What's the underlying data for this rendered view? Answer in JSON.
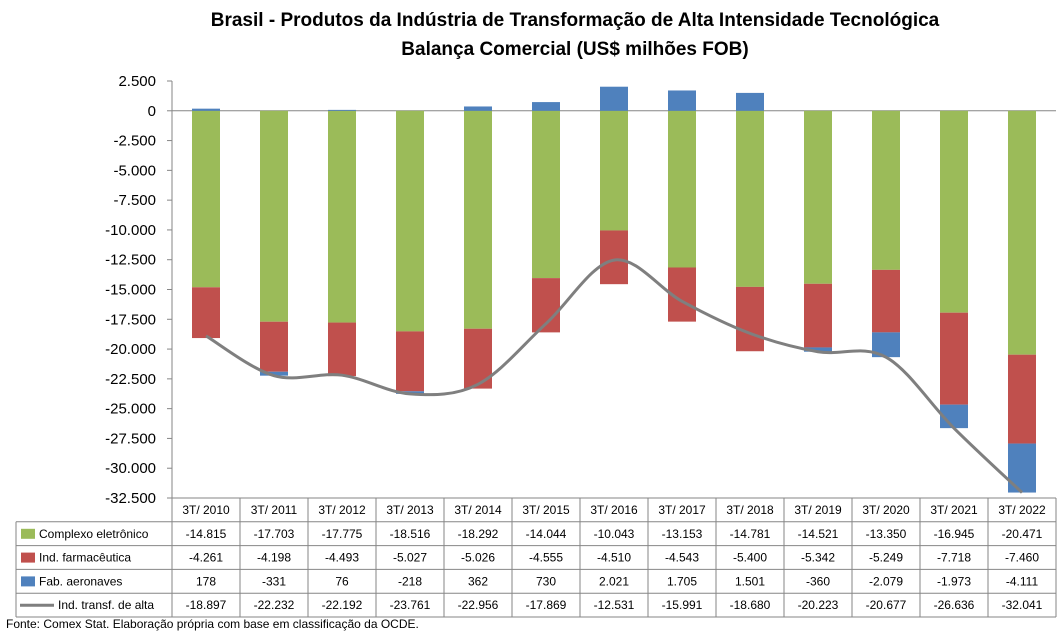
{
  "title_line1": "Brasil - Produtos da Indústria de Transformação de Alta Intensidade Tecnológica",
  "title_line2": "Balança Comercial (US$ milhões FOB)",
  "source_note": "Fonte: Comex Stat. Elaboração própria com base em classificação da OCDE.",
  "chart_data": {
    "type": "bar",
    "stacked": true,
    "categories": [
      "3T/ 2010",
      "3T/ 2011",
      "3T/ 2012",
      "3T/ 2013",
      "3T/ 2014",
      "3T/ 2015",
      "3T/ 2016",
      "3T/ 2017",
      "3T/ 2018",
      "3T/ 2019",
      "3T/ 2020",
      "3T/ 2021",
      "3T/ 2022"
    ],
    "ylim": [
      -32500,
      2500
    ],
    "yticks": [
      2500,
      0,
      -2500,
      -5000,
      -7500,
      -10000,
      -12500,
      -15000,
      -17500,
      -20000,
      -22500,
      -25000,
      -27500,
      -30000,
      -32500
    ],
    "ytick_labels": [
      "2.500",
      "0",
      "-2.500",
      "-5.000",
      "-7.500",
      "-10.000",
      "-12.500",
      "-15.000",
      "-17.500",
      "-20.000",
      "-22.500",
      "-25.000",
      "-27.500",
      "-30.000",
      "-32.500"
    ],
    "series": [
      {
        "name": "Complexo eletrônico",
        "type": "bar",
        "color": "#9BBB59",
        "values": [
          -14815,
          -17703,
          -17775,
          -18516,
          -18292,
          -14044,
          -10043,
          -13153,
          -14781,
          -14521,
          -13350,
          -16945,
          -20471
        ],
        "labels": [
          "-14.815",
          "-17.703",
          "-17.775",
          "-18.516",
          "-18.292",
          "-14.044",
          "-10.043",
          "-13.153",
          "-14.781",
          "-14.521",
          "-13.350",
          "-16.945",
          "-20.471"
        ]
      },
      {
        "name": "Ind. farmacêutica",
        "type": "bar",
        "color": "#C0504D",
        "values": [
          -4261,
          -4198,
          -4493,
          -5027,
          -5026,
          -4555,
          -4510,
          -4543,
          -5400,
          -5342,
          -5249,
          -7718,
          -7460
        ],
        "labels": [
          "-4.261",
          "-4.198",
          "-4.493",
          "-5.027",
          "-5.026",
          "-4.555",
          "-4.510",
          "-4.543",
          "-5.400",
          "-5.342",
          "-5.249",
          "-7.718",
          "-7.460"
        ]
      },
      {
        "name": "Fab. aeronaves",
        "type": "bar",
        "color": "#4F81BD",
        "values": [
          178,
          -331,
          76,
          -218,
          362,
          730,
          2021,
          1705,
          1501,
          -360,
          -2079,
          -1973,
          -4111
        ],
        "labels": [
          "178",
          "-331",
          "76",
          "-218",
          "362",
          "730",
          "2.021",
          "1.705",
          "1.501",
          "-360",
          "-2.079",
          "-1.973",
          "-4.111"
        ]
      },
      {
        "name": "Ind. transf. de alta",
        "type": "line",
        "color": "#7F7F7F",
        "values": [
          -18897,
          -22232,
          -22192,
          -23761,
          -22956,
          -17869,
          -12531,
          -15991,
          -18680,
          -20223,
          -20677,
          -26636,
          -32041
        ],
        "labels": [
          "-18.897",
          "-22.232",
          "-22.192",
          "-23.761",
          "-22.956",
          "-17.869",
          "-12.531",
          "-15.991",
          "-18.680",
          "-20.223",
          "-20.677",
          "-26.636",
          "-32.041"
        ]
      }
    ],
    "legend": "table-left",
    "grid": false
  }
}
